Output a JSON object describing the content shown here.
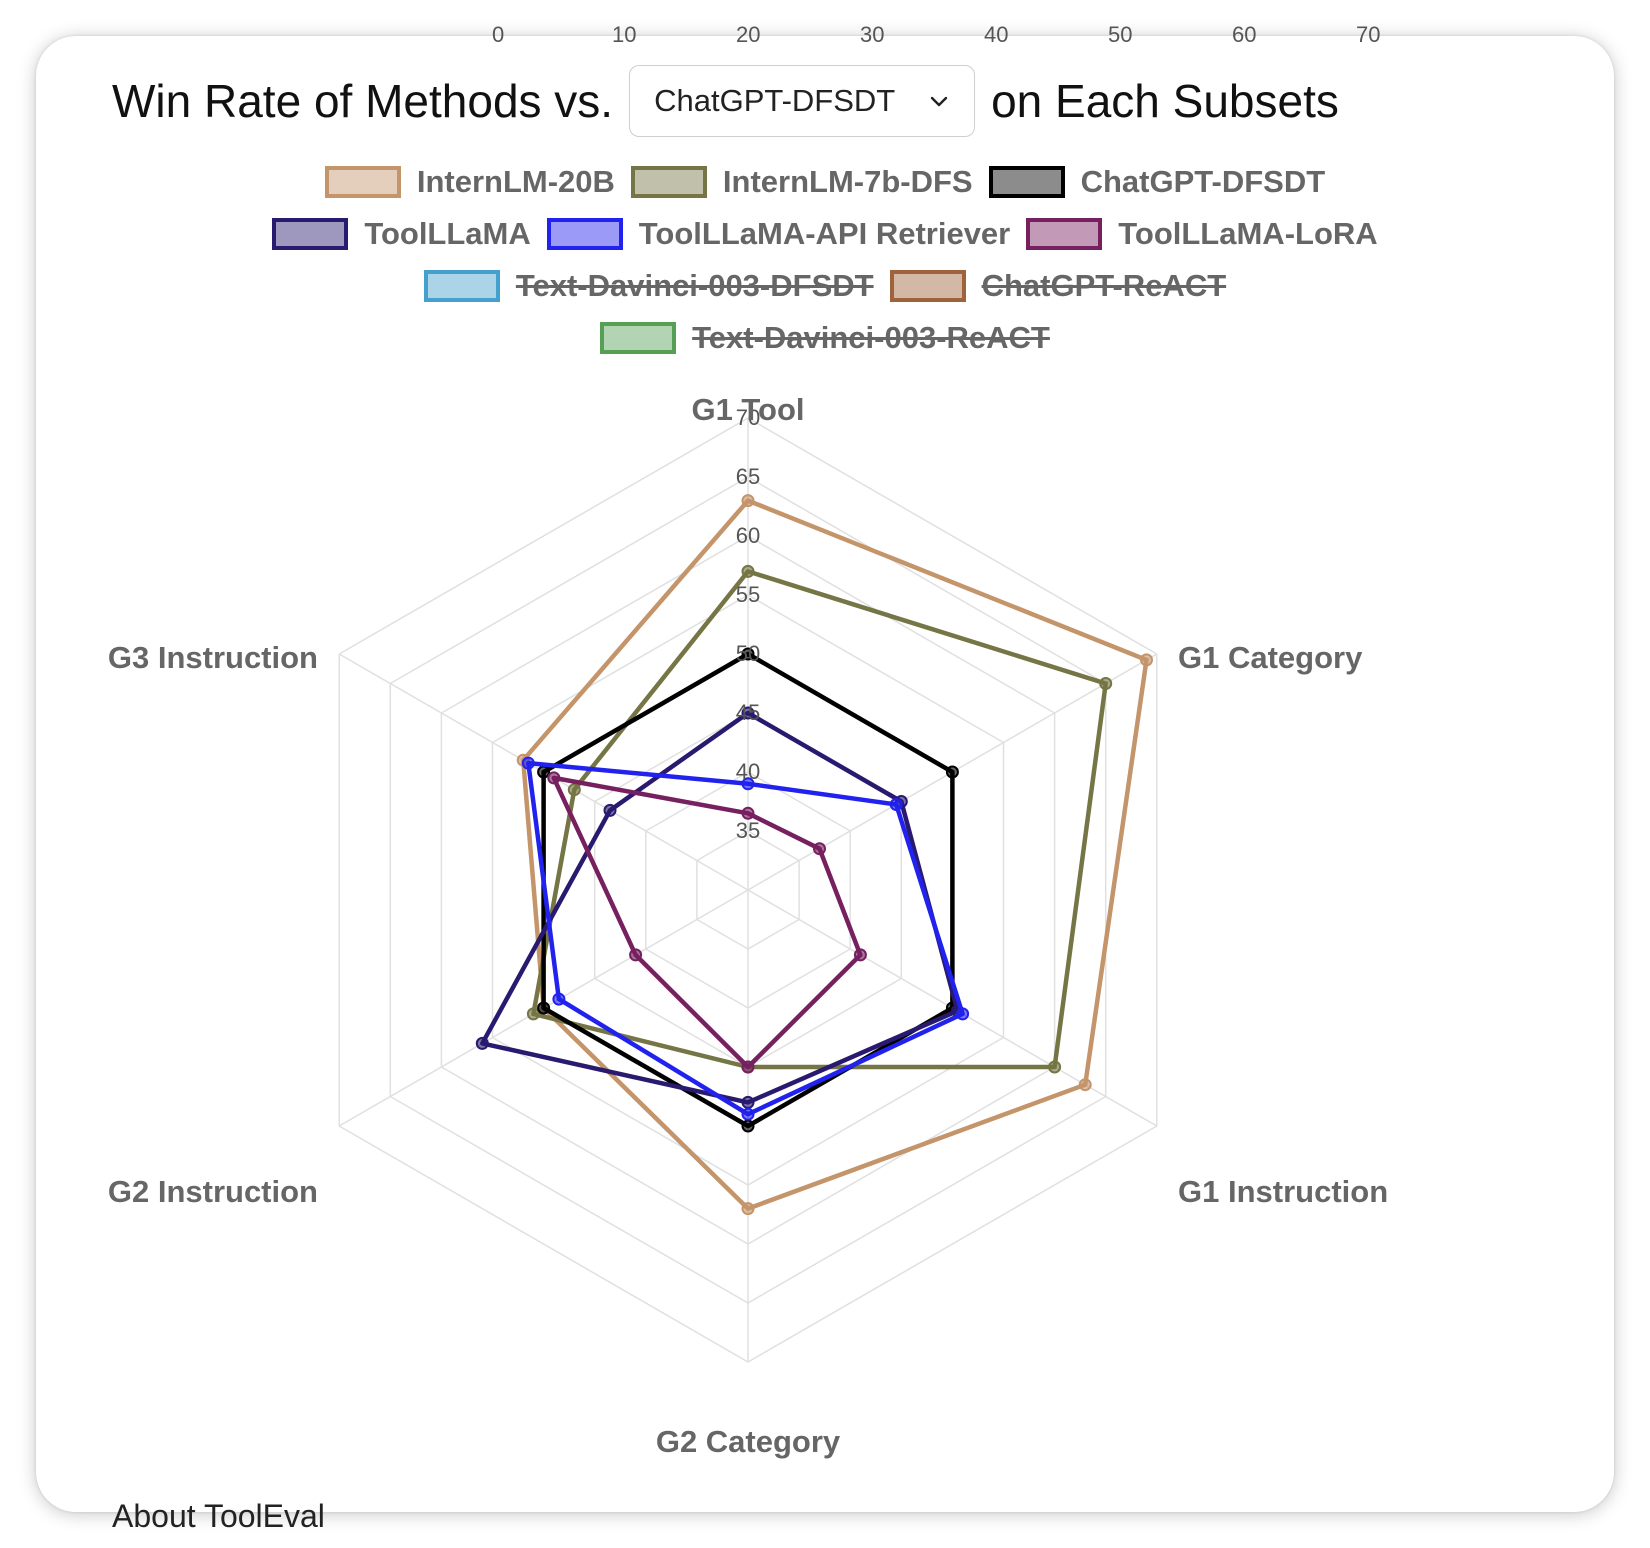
{
  "header": {
    "title_prefix": "Win Rate of Methods vs.",
    "title_suffix": "on Each Subsets",
    "baseline_select": {
      "value": "ChatGPT-DFSDT",
      "icon": "chevron-down-icon"
    }
  },
  "top_cut_axis": [
    "0",
    "10",
    "20",
    "30",
    "40",
    "50",
    "60",
    "70"
  ],
  "footer_cut_text": "About ToolEval",
  "chart_data": {
    "type": "radar",
    "axes": [
      "G1 Tool",
      "G1 Category",
      "G1 Instruction",
      "G2 Category",
      "G2 Instruction",
      "G3 Instruction"
    ],
    "r_range": [
      30,
      70
    ],
    "r_ticks": [
      "35",
      "40",
      "45",
      "50",
      "55",
      "60",
      "65",
      "70"
    ],
    "grid": true,
    "legend_position": "top",
    "series": [
      {
        "name": "InternLM-20B",
        "color": "#c4946a",
        "visible": true,
        "values": [
          63,
          69,
          63,
          57,
          50,
          52
        ]
      },
      {
        "name": "InternLM-7b-DFS",
        "color": "#757545",
        "visible": true,
        "values": [
          57,
          65,
          60,
          45,
          51,
          47
        ]
      },
      {
        "name": "ChatGPT-DFSDT",
        "color": "#000000",
        "visible": true,
        "values": [
          50,
          50,
          50,
          50,
          50,
          50
        ]
      },
      {
        "name": "ToolLLaMA",
        "color": "#291a70",
        "visible": true,
        "values": [
          45,
          45,
          50.5,
          48,
          56,
          43.5
        ]
      },
      {
        "name": "ToolLLaMA-API Retriever",
        "color": "#2222ee",
        "visible": true,
        "values": [
          39,
          44.5,
          51,
          49,
          48.5,
          51.5
        ]
      },
      {
        "name": "ToolLLaMA-LoRA",
        "color": "#772060",
        "visible": true,
        "values": [
          36.5,
          37,
          41,
          45,
          41,
          49
        ]
      },
      {
        "name": "Text-Davinci-003-DFSDT",
        "color": "#44a0cc",
        "visible": false,
        "values": []
      },
      {
        "name": "ChatGPT-ReACT",
        "color": "#a0623a",
        "visible": false,
        "values": []
      },
      {
        "name": "Text-Davinci-003-ReACT",
        "color": "#55a055",
        "visible": false,
        "values": []
      }
    ]
  }
}
